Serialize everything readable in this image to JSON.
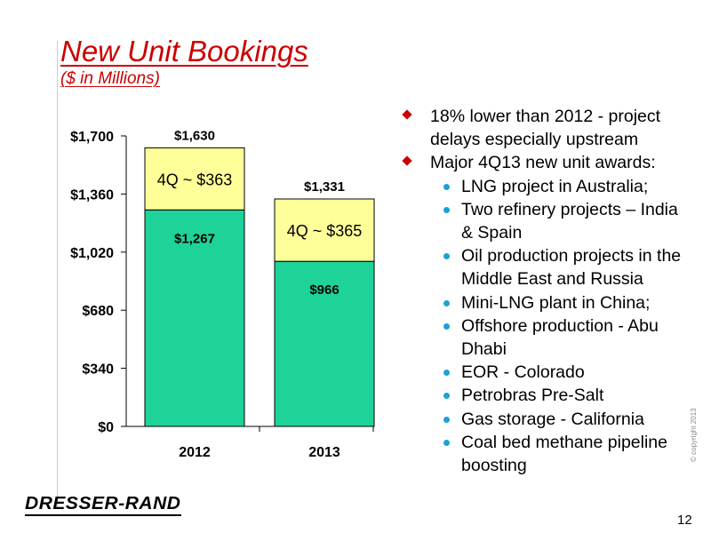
{
  "slide": {
    "title": "New Unit Bookings",
    "subtitle": "($ in Millions)",
    "page_number": "12",
    "copyright": "© copyright 2013",
    "logo_text": "DRESSER-RAND"
  },
  "bullets": [
    {
      "level": 1,
      "text": "18% lower than 2012 - project delays especially upstream"
    },
    {
      "level": 1,
      "text": "Major 4Q13 new unit awards:"
    },
    {
      "level": 2,
      "text": "LNG project in Australia;"
    },
    {
      "level": 2,
      "text": "Two refinery projects – India & Spain"
    },
    {
      "level": 2,
      "text": "Oil production projects in the Middle East and Russia"
    },
    {
      "level": 2,
      "text": "Mini-LNG plant in China;"
    },
    {
      "level": 2,
      "text": "Offshore production - Abu Dhabi"
    },
    {
      "level": 2,
      "text": "EOR - Colorado"
    },
    {
      "level": 2,
      "text": "Petrobras Pre-Salt"
    },
    {
      "level": 2,
      "text": "Gas storage - California"
    },
    {
      "level": 2,
      "text": "Coal bed methane pipeline boosting"
    }
  ],
  "colors": {
    "title": "#cc0000",
    "bullet_level1": "#cc0000",
    "bullet_level2": "#1aa1d8",
    "bar_base": "#1dd39a",
    "bar_4q": "#ffff99"
  },
  "chart_data": {
    "type": "bar",
    "stacked": true,
    "categories": [
      "2012",
      "2013"
    ],
    "series": [
      {
        "values": [
          1267,
          966
        ],
        "labels": [
          "$1,267",
          "$966"
        ]
      },
      {
        "values": [
          363,
          365
        ],
        "labels": [
          "4Q ~ $363",
          "4Q ~ $365"
        ]
      }
    ],
    "totals": [
      1630,
      1331
    ],
    "total_labels": [
      "$1,630",
      "$1,331"
    ],
    "ylim": [
      0,
      1700
    ],
    "yticks": [
      0,
      340,
      680,
      1020,
      1360,
      1700
    ],
    "ytick_labels": [
      "$0",
      "$340",
      "$680",
      "$1,020",
      "$1,360",
      "$1,700"
    ],
    "grid": false,
    "legend": "none"
  }
}
